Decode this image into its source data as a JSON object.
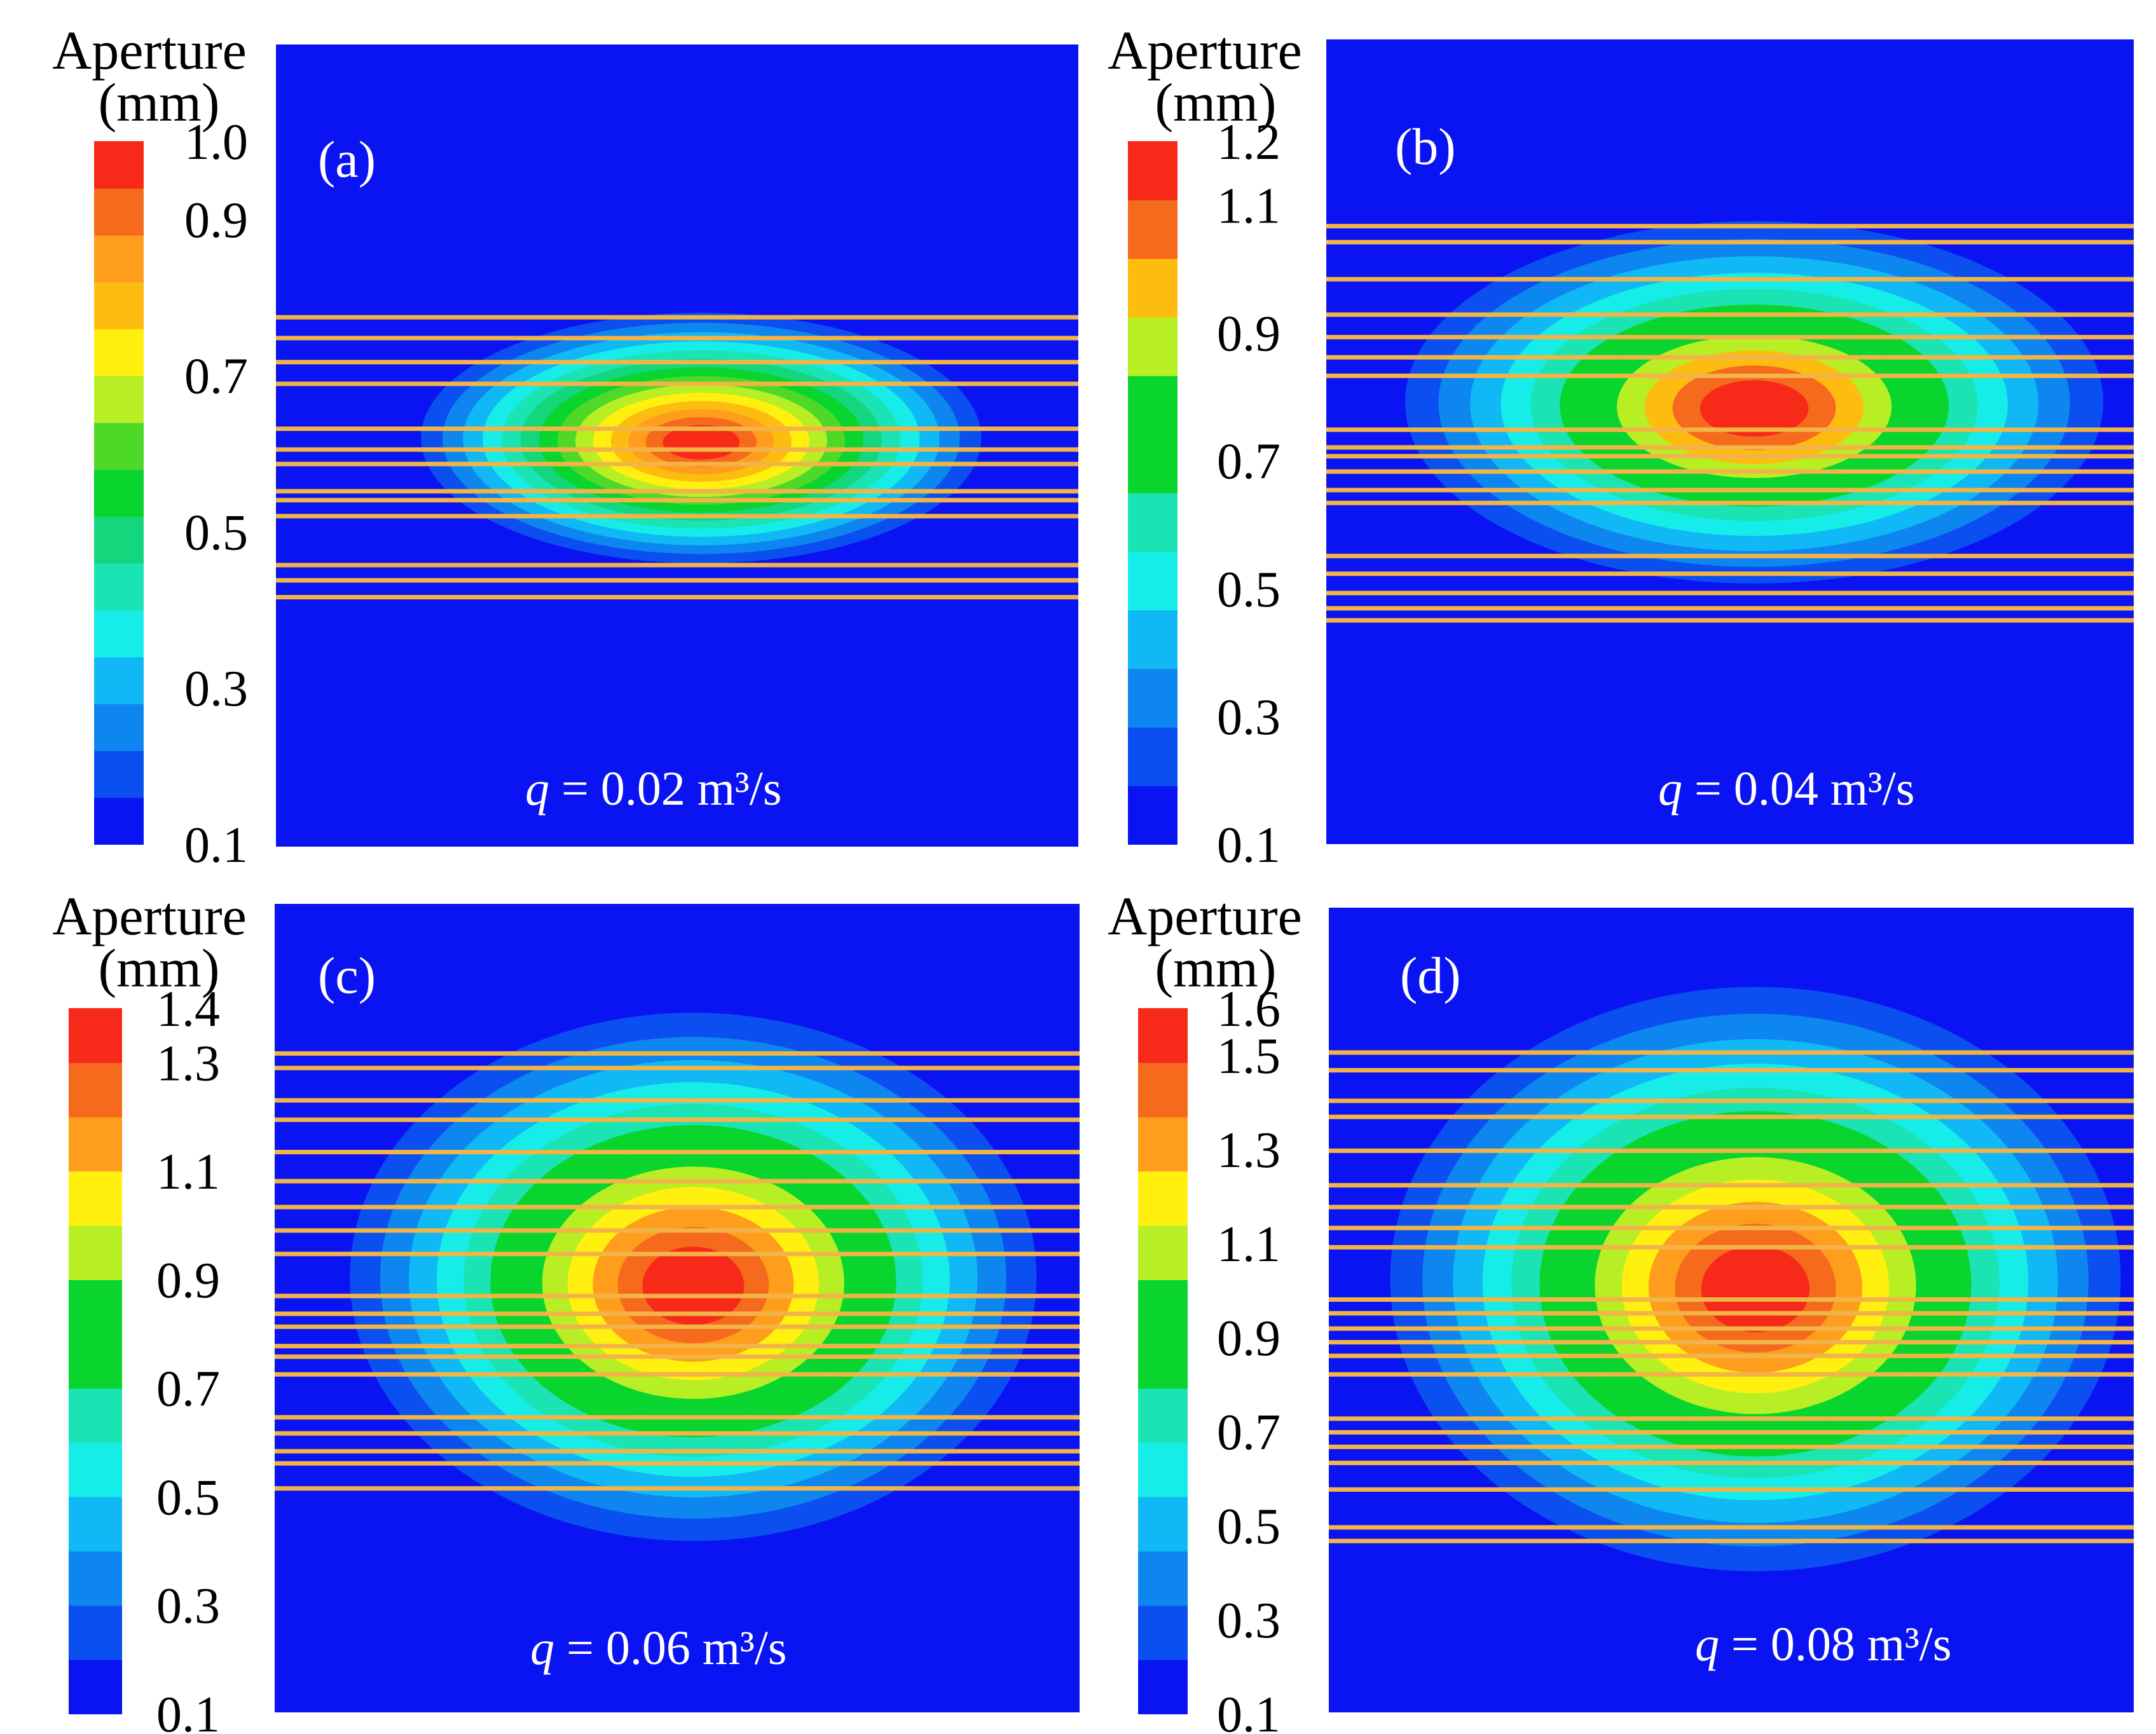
{
  "figure": {
    "description_type": "multi-panel contour map of fracture aperture"
  },
  "colors": {
    "background_field": "#0a14f2",
    "fracture_line": "#f2b447",
    "annotation_text": "#ffffff",
    "label_text": "#000000"
  },
  "chart_data": [
    {
      "type": "heatmap",
      "panel_label": "(a)",
      "annotation_var": "q",
      "annotation_value": " = 0.02 m³/s",
      "colorbar_title": "Aperture",
      "colorbar_unit": "(mm)",
      "colorbar_range": [
        0.1,
        1.0
      ],
      "colorbar_ticks": [
        "0.1",
        "0.3",
        "0.5",
        "0.7",
        "0.9",
        "1.0"
      ],
      "colorbar_tick_values": [
        0.1,
        0.3,
        0.5,
        0.7,
        0.9,
        1.0
      ],
      "colorbar_levels": [
        "#0a14f2",
        "#0b4ff0",
        "#0d86f0",
        "#10b8f5",
        "#16ede8",
        "#1ae3b4",
        "#13d67d",
        "#0ad42e",
        "#4ed928",
        "#b7ef24",
        "#fff010",
        "#ffbc10",
        "#ff9d1c",
        "#f56a1c",
        "#f72a1a"
      ],
      "peak_aperture_mm": 1.0,
      "plume_center": [
        0.53,
        0.49
      ],
      "plume_radius": [
        0.38,
        0.17
      ],
      "fracture_lines_y": [
        0.34,
        0.366,
        0.396,
        0.423,
        0.479,
        0.505,
        0.523,
        0.557,
        0.568,
        0.588,
        0.649,
        0.668,
        0.689
      ]
    },
    {
      "type": "heatmap",
      "panel_label": "(b)",
      "annotation_var": "q",
      "annotation_value": " = 0.04 m³/s",
      "colorbar_title": "Aperture",
      "colorbar_unit": "(mm)",
      "colorbar_range": [
        0.1,
        1.2
      ],
      "colorbar_ticks": [
        "0.1",
        "0.3",
        "0.5",
        "0.7",
        "0.9",
        "1.1",
        "1.2"
      ],
      "colorbar_tick_values": [
        0.1,
        0.3,
        0.5,
        0.7,
        0.9,
        1.1,
        1.2
      ],
      "colorbar_levels": [
        "#0a14f2",
        "#0b4ff0",
        "#0d86f0",
        "#10b8f5",
        "#16ede8",
        "#1ae3b4",
        "#0ad42e",
        "#0ad42e",
        "#b7ef24",
        "#ffbc10",
        "#f56a1c",
        "#f72a1a"
      ],
      "peak_aperture_mm": 1.2,
      "plume_center": [
        0.53,
        0.45
      ],
      "plume_radius": [
        0.48,
        0.25
      ],
      "fracture_lines_y": [
        0.232,
        0.252,
        0.298,
        0.342,
        0.37,
        0.395,
        0.418,
        0.485,
        0.507,
        0.518,
        0.537,
        0.56,
        0.576,
        0.642,
        0.664,
        0.688,
        0.707,
        0.722
      ]
    },
    {
      "type": "heatmap",
      "panel_label": "(c)",
      "annotation_var": "q",
      "annotation_value": " = 0.06 m³/s",
      "colorbar_title": "Aperture",
      "colorbar_unit": "(mm)",
      "colorbar_range": [
        0.1,
        1.4
      ],
      "colorbar_ticks": [
        "0.1",
        "0.3",
        "0.5",
        "0.7",
        "0.9",
        "1.1",
        "1.3",
        "1.4"
      ],
      "colorbar_tick_values": [
        0.1,
        0.3,
        0.5,
        0.7,
        0.9,
        1.1,
        1.3,
        1.4
      ],
      "colorbar_levels": [
        "#0a14f2",
        "#0b4ff0",
        "#0d86f0",
        "#10b8f5",
        "#16ede8",
        "#1ae3b4",
        "#0ad42e",
        "#0ad42e",
        "#b7ef24",
        "#fff010",
        "#ff9d1c",
        "#f56a1c",
        "#f72a1a"
      ],
      "peak_aperture_mm": 1.4,
      "plume_center": [
        0.52,
        0.46
      ],
      "plume_radius": [
        0.47,
        0.36
      ],
      "fracture_lines_y": [
        0.185,
        0.203,
        0.243,
        0.267,
        0.307,
        0.343,
        0.375,
        0.404,
        0.433,
        0.485,
        0.507,
        0.523,
        0.547,
        0.56,
        0.582,
        0.635,
        0.655,
        0.677,
        0.692,
        0.723
      ]
    },
    {
      "type": "heatmap",
      "panel_label": "(d)",
      "annotation_var": "q",
      "annotation_value": " = 0.08 m³/s",
      "colorbar_title": "Aperture",
      "colorbar_unit": "(mm)",
      "colorbar_range": [
        0.1,
        1.6
      ],
      "colorbar_ticks": [
        "0.1",
        "0.3",
        "0.5",
        "0.7",
        "0.9",
        "1.1",
        "1.3",
        "1.5",
        "1.6"
      ],
      "colorbar_tick_values": [
        0.1,
        0.3,
        0.5,
        0.7,
        0.9,
        1.1,
        1.3,
        1.5,
        1.6
      ],
      "colorbar_levels": [
        "#0a14f2",
        "#0b4ff0",
        "#0d86f0",
        "#10b8f5",
        "#16ede8",
        "#1ae3b4",
        "#0ad42e",
        "#0ad42e",
        "#b7ef24",
        "#fff010",
        "#ff9d1c",
        "#f56a1c",
        "#f72a1a"
      ],
      "peak_aperture_mm": 1.6,
      "plume_center": [
        0.53,
        0.46
      ],
      "plume_radius": [
        0.5,
        0.4
      ],
      "fracture_lines_y": [
        0.18,
        0.202,
        0.24,
        0.26,
        0.302,
        0.345,
        0.372,
        0.398,
        0.422,
        0.487,
        0.504,
        0.523,
        0.54,
        0.557,
        0.58,
        0.635,
        0.652,
        0.67,
        0.69,
        0.723,
        0.77,
        0.787
      ]
    }
  ]
}
